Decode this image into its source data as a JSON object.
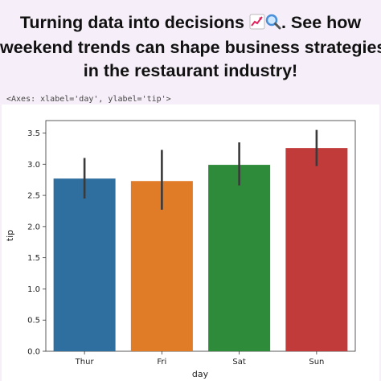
{
  "post": {
    "headline_line1": "Turning data into decisions",
    "headline_line1_rest": ". See how",
    "headline_line2": "weekend trends can shape business strategies",
    "headline_line3": "in the restaurant industry!",
    "emoji_icons": [
      "chart-increasing-icon",
      "magnifying-glass-icon"
    ]
  },
  "console": {
    "repr_text": "<Axes: xlabel='day', ylabel='tip'>"
  },
  "chart_data": {
    "type": "bar",
    "categories": [
      "Thur",
      "Fri",
      "Sat",
      "Sun"
    ],
    "values": [
      2.77,
      2.73,
      2.99,
      3.26
    ],
    "error_low": [
      2.45,
      2.27,
      2.66,
      2.97
    ],
    "error_high": [
      3.1,
      3.23,
      3.35,
      3.55
    ],
    "colors": [
      "#2f6f9f",
      "#e07b28",
      "#2e8b3a",
      "#c23b3b"
    ],
    "xlabel": "day",
    "ylabel": "tip",
    "ylim": [
      0,
      3.7
    ],
    "yticks": [
      "0.0",
      "0.5",
      "1.0",
      "1.5",
      "2.0",
      "2.5",
      "3.0",
      "3.5"
    ],
    "grid": false,
    "legend": "none"
  }
}
